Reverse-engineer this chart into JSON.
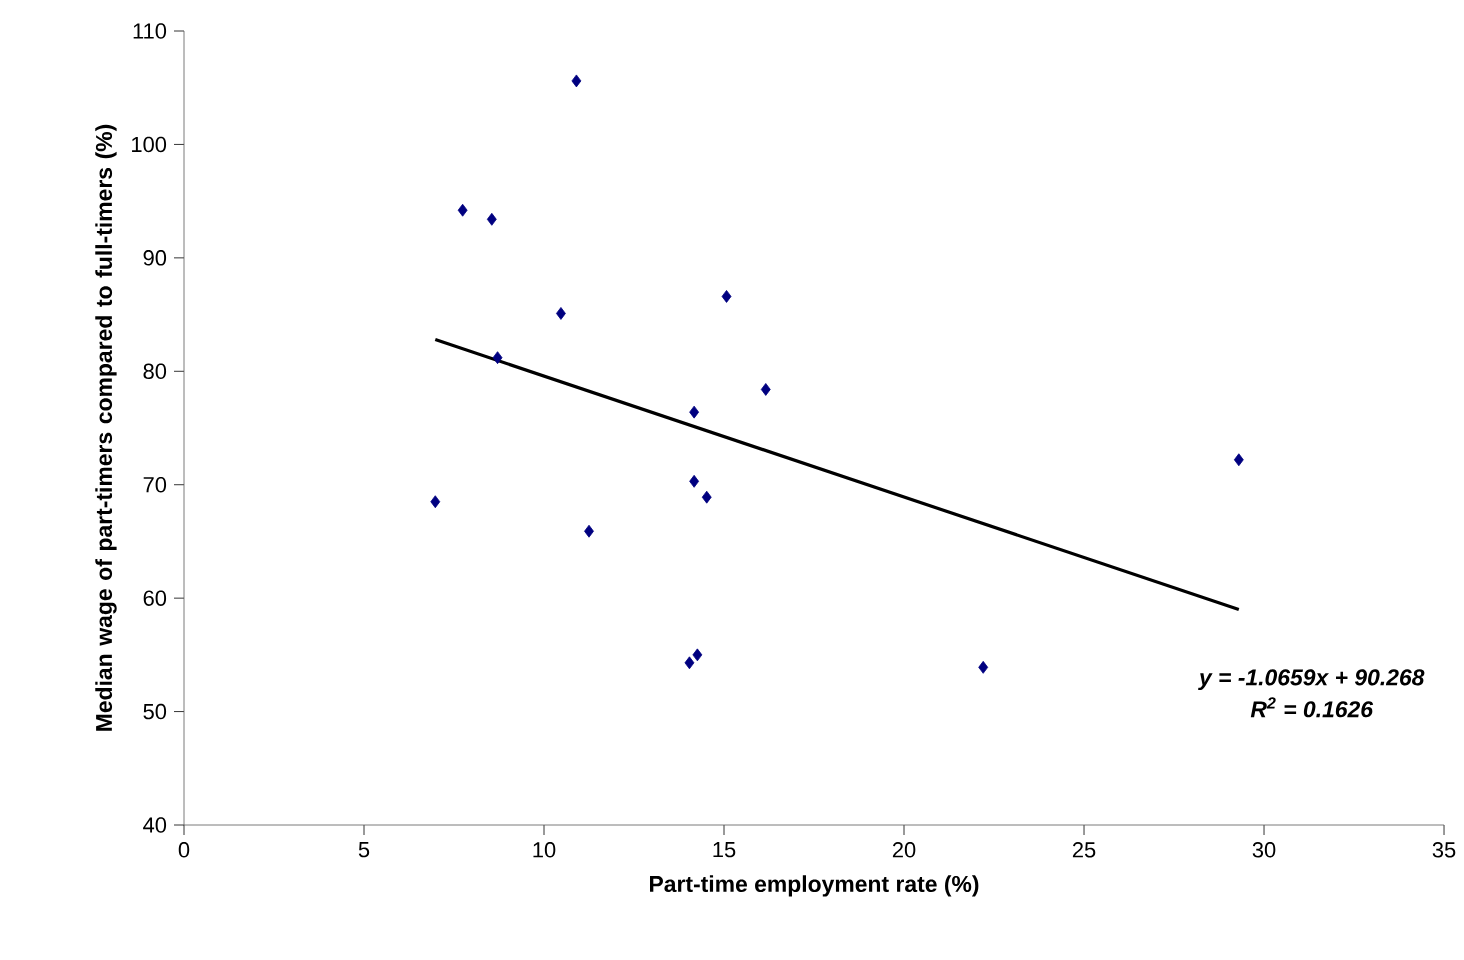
{
  "chart_data": {
    "type": "scatter",
    "xlabel": "Part-time employment rate (%)",
    "ylabel": "Median wage of part-timers compared to full-timers (%)",
    "xlim": [
      0,
      35
    ],
    "xticks": [
      0,
      5,
      10,
      15,
      20,
      25,
      30,
      35
    ],
    "ylim": [
      40,
      110
    ],
    "yticks": [
      40,
      50,
      60,
      70,
      80,
      90,
      100,
      110
    ],
    "grid": false,
    "marker": "diamond",
    "series": [
      {
        "color": "#000080",
        "x": [
          10.9,
          7.74,
          8.55,
          10.47,
          15.07,
          8.71,
          16.16,
          14.17,
          6.98,
          14.17,
          14.52,
          11.25,
          14.04,
          14.26,
          22.2,
          29.3
        ],
        "values": [
          105.6,
          94.2,
          93.4,
          85.1,
          86.6,
          81.2,
          78.4,
          76.4,
          68.5,
          70.3,
          68.9,
          65.9,
          54.3,
          55.0,
          53.9,
          72.2
        ]
      },
      {
        "type": "line",
        "color": "#000000",
        "marker": "none",
        "line_style": "solid",
        "x": [
          6.98,
          29.3
        ],
        "values": [
          82.8,
          59.0
        ]
      }
    ],
    "annotations": [
      "y = -1.0659x + 90.268",
      "R$^{2}$ = 0.1626"
    ]
  }
}
